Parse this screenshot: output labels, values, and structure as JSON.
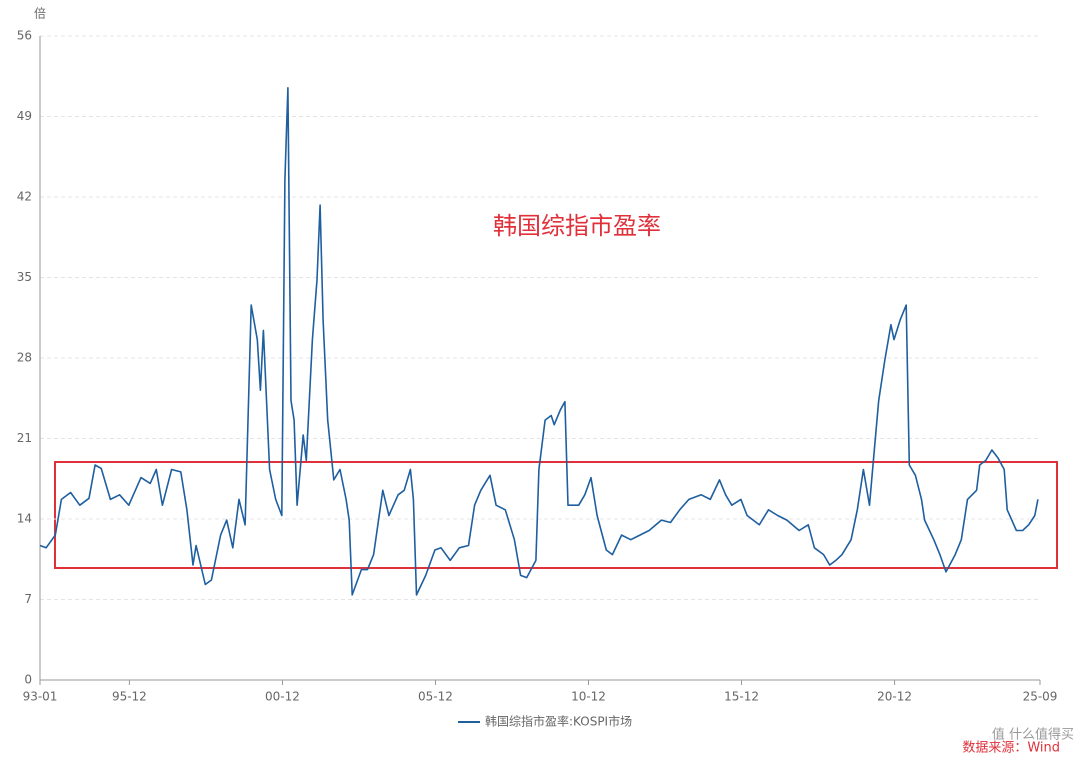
{
  "chart_data": {
    "type": "line",
    "y_unit": "倍",
    "annotation": "韩国综指市盈率",
    "source": "数据来源：Wind",
    "watermark": "值 什么值得买",
    "x": [
      1993.0,
      1993.2,
      1993.5,
      1993.7,
      1994.0,
      1994.3,
      1994.6,
      1994.8,
      1995.0,
      1995.3,
      1995.6,
      1995.9,
      1996.3,
      1996.6,
      1996.8,
      1997.0,
      1997.3,
      1997.6,
      1997.8,
      1998.0,
      1998.1,
      1998.4,
      1998.6,
      1998.9,
      1999.1,
      1999.3,
      1999.5,
      1999.7,
      1999.9,
      2000.1,
      2000.2,
      2000.3,
      2000.5,
      2000.7,
      2000.9,
      2001.0,
      2001.1,
      2001.2,
      2001.3,
      2001.4,
      2001.6,
      2001.7,
      2001.9,
      2002.05,
      2002.15,
      2002.25,
      2002.4,
      2002.6,
      2002.8,
      2003.0,
      2003.1,
      2003.2,
      2003.5,
      2003.7,
      2003.9,
      2004.2,
      2004.4,
      2004.7,
      2004.9,
      2005.1,
      2005.2,
      2005.3,
      2005.6,
      2005.9,
      2006.1,
      2006.4,
      2006.7,
      2007.0,
      2007.2,
      2007.4,
      2007.7,
      2007.9,
      2008.2,
      2008.5,
      2008.7,
      2008.9,
      2009.2,
      2009.3,
      2009.5,
      2009.7,
      2009.8,
      2010.0,
      2010.15,
      2010.25,
      2010.6,
      2010.8,
      2011.0,
      2011.2,
      2011.5,
      2011.7,
      2012.0,
      2012.3,
      2012.6,
      2012.9,
      2013.3,
      2013.6,
      2013.9,
      2014.2,
      2014.6,
      2014.9,
      2015.2,
      2015.4,
      2015.6,
      2015.9,
      2016.1,
      2016.5,
      2016.8,
      2017.1,
      2017.4,
      2017.8,
      2018.1,
      2018.3,
      2018.6,
      2018.8,
      2019.0,
      2019.2,
      2019.5,
      2019.7,
      2019.9,
      2020.1,
      2020.2,
      2020.4,
      2020.6,
      2020.8,
      2020.9,
      2021.1,
      2021.3,
      2021.4,
      2021.6,
      2021.8,
      2021.9,
      2022.2,
      2022.4,
      2022.6,
      2022.9,
      2023.1,
      2023.3,
      2023.6,
      2023.7,
      2023.9,
      2024.1,
      2024.3,
      2024.5,
      2024.6,
      2024.9,
      2025.1,
      2025.3,
      2025.5,
      2025.6
    ],
    "series": [
      {
        "name": "韩国综指市盈率:KOSPI市场",
        "color": "#1f5fa0",
        "values": [
          11.7,
          11.5,
          12.6,
          15.7,
          16.3,
          15.2,
          15.8,
          18.7,
          18.4,
          15.7,
          16.1,
          15.2,
          17.6,
          17.1,
          18.3,
          15.2,
          18.3,
          18.1,
          14.8,
          10.0,
          11.7,
          8.3,
          8.7,
          12.6,
          13.9,
          11.5,
          15.7,
          13.5,
          32.6,
          29.6,
          25.2,
          30.4,
          18.3,
          15.7,
          14.3,
          43.5,
          51.5,
          24.3,
          22.6,
          15.2,
          21.3,
          19.1,
          29.6,
          34.8,
          41.3,
          31.3,
          22.6,
          17.4,
          18.3,
          15.7,
          13.9,
          7.4,
          9.6,
          9.6,
          10.9,
          16.5,
          14.3,
          16.1,
          16.5,
          18.3,
          15.7,
          7.4,
          9.1,
          11.3,
          11.5,
          10.4,
          11.5,
          11.7,
          15.2,
          16.5,
          17.8,
          15.2,
          14.8,
          12.2,
          9.1,
          8.9,
          10.4,
          18.3,
          22.6,
          23.0,
          22.2,
          23.5,
          24.2,
          15.2,
          15.2,
          16.1,
          17.6,
          14.3,
          11.3,
          10.9,
          12.6,
          12.2,
          12.6,
          13.0,
          13.9,
          13.7,
          14.8,
          15.7,
          16.1,
          15.7,
          17.4,
          16.1,
          15.2,
          15.7,
          14.3,
          13.5,
          14.8,
          14.3,
          13.9,
          13.0,
          13.5,
          11.5,
          10.9,
          10.0,
          10.4,
          10.9,
          12.2,
          14.8,
          18.3,
          15.2,
          18.3,
          24.3,
          27.8,
          30.9,
          29.6,
          31.3,
          32.6,
          18.7,
          17.8,
          15.7,
          13.9,
          12.2,
          10.9,
          9.4,
          10.9,
          12.2,
          15.7,
          16.5,
          18.7,
          19.1,
          20.0,
          19.3,
          18.3,
          14.8,
          13.0,
          13.0,
          13.5,
          14.3,
          15.7
        ]
      }
    ],
    "xlim": [
      1993.0,
      2025.67
    ],
    "xticks": [
      {
        "value": 1993.0,
        "label": "93-01"
      },
      {
        "value": 1995.92,
        "label": "95-12"
      },
      {
        "value": 2000.92,
        "label": "00-12"
      },
      {
        "value": 2005.92,
        "label": "05-12"
      },
      {
        "value": 2010.92,
        "label": "10-12"
      },
      {
        "value": 2015.92,
        "label": "15-12"
      },
      {
        "value": 2020.92,
        "label": "20-12"
      },
      {
        "value": 2025.67,
        "label": "25-09"
      }
    ],
    "ylim": [
      0,
      56
    ],
    "yticks": [
      0,
      7,
      14,
      21,
      28,
      35,
      42,
      49,
      56
    ],
    "grid": true
  }
}
